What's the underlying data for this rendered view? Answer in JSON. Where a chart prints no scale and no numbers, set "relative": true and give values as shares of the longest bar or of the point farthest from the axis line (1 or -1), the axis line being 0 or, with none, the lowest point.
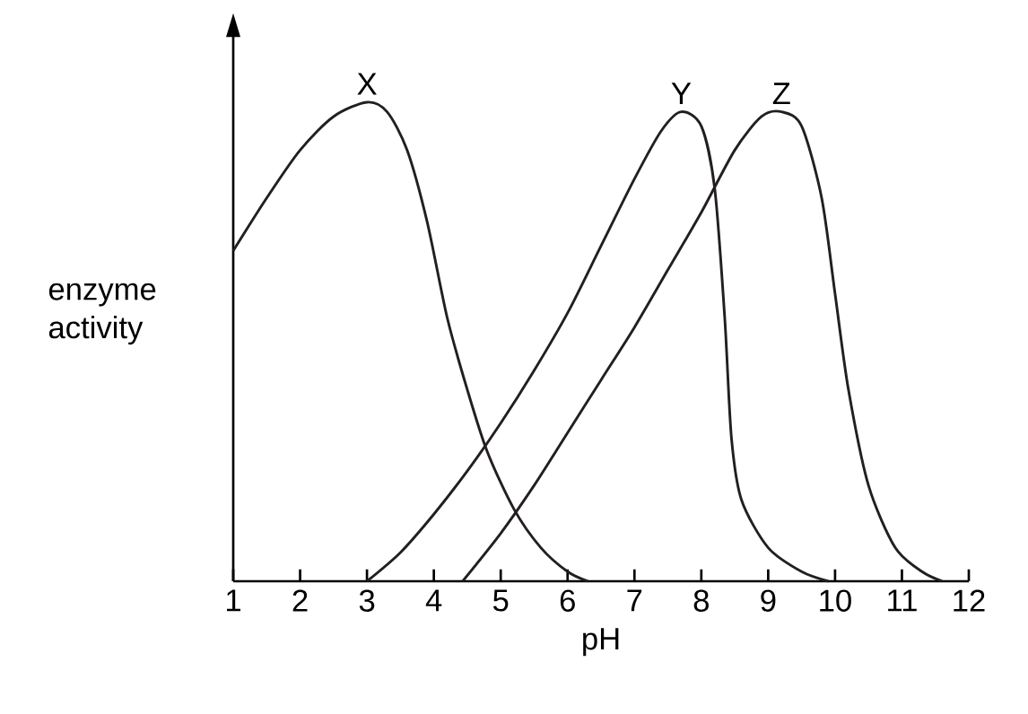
{
  "chart_data": {
    "type": "line",
    "relative": true,
    "xlabel": "pH",
    "ylabel": "enzyme activity",
    "xlim": [
      1,
      12
    ],
    "xticks": [
      1,
      2,
      3,
      4,
      5,
      6,
      7,
      8,
      9,
      10,
      11,
      12
    ],
    "legend": false,
    "marker": "none",
    "line_style": "solid",
    "grid": false,
    "series": [
      {
        "name": "X",
        "color": "#231f20",
        "x": [
          1,
          1.5,
          2,
          2.5,
          3,
          3.3,
          3.6,
          3.9,
          4.2,
          4.5,
          4.8,
          5.2,
          5.6,
          6,
          6.3
        ],
        "values": [
          0.69,
          0.8,
          0.9,
          0.97,
          1,
          0.98,
          0.9,
          0.75,
          0.55,
          0.4,
          0.27,
          0.15,
          0.07,
          0.02,
          0
        ]
      },
      {
        "name": "Y",
        "color": "#231f20",
        "x": [
          3,
          3.5,
          4,
          4.5,
          5,
          5.5,
          6,
          6.5,
          7,
          7.4,
          7.7,
          8,
          8.2,
          8.35,
          8.45,
          8.6,
          9,
          9.5,
          9.9
        ],
        "values": [
          0,
          0.06,
          0.14,
          0.23,
          0.33,
          0.44,
          0.56,
          0.7,
          0.84,
          0.94,
          0.98,
          0.95,
          0.82,
          0.55,
          0.3,
          0.17,
          0.07,
          0.02,
          0
        ]
      },
      {
        "name": "Z",
        "color": "#231f20",
        "x": [
          4.43,
          5,
          5.5,
          6,
          6.5,
          7,
          7.5,
          8,
          8.5,
          8.9,
          9.2,
          9.5,
          9.8,
          10,
          10.2,
          10.5,
          10.9,
          11.3,
          11.6
        ],
        "values": [
          0,
          0.1,
          0.2,
          0.31,
          0.42,
          0.53,
          0.65,
          0.77,
          0.9,
          0.97,
          0.98,
          0.95,
          0.8,
          0.6,
          0.4,
          0.2,
          0.07,
          0.02,
          0
        ]
      }
    ]
  }
}
